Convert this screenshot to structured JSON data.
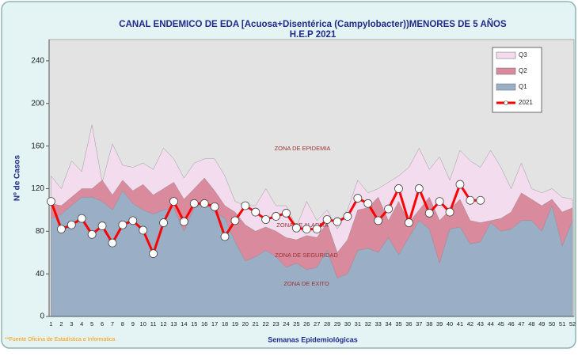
{
  "chart_data": {
    "type": "area",
    "title": "CANAL ENDEMICO DE EDA [Acuosa+Disentérica (Campylobacter))MENORES DE 5 AÑOS",
    "subtitle": "H.E.P 2021",
    "x_label": "Semanas Epidemiológicas",
    "y_label": "Nº de Casos",
    "source": "**Fuente Oficina de Estadística e Informatica",
    "annotations": [
      "ZONA DE EPIDEMIA",
      "ZONA DE ALARMA",
      "ZONA DE SEGURIDAD",
      "ZONA DE EXITO"
    ],
    "categories": [
      1,
      2,
      3,
      4,
      5,
      6,
      7,
      8,
      9,
      10,
      11,
      12,
      13,
      14,
      15,
      16,
      17,
      18,
      19,
      20,
      21,
      22,
      23,
      24,
      25,
      26,
      27,
      28,
      29,
      30,
      31,
      32,
      33,
      34,
      35,
      36,
      37,
      38,
      39,
      40,
      41,
      42,
      43,
      44,
      45,
      46,
      47,
      48,
      49,
      50,
      51,
      52
    ],
    "ylim": [
      0,
      260
    ],
    "yticks": [
      0,
      40,
      80,
      120,
      160,
      200,
      240
    ],
    "series": [
      {
        "name": "Q3",
        "color": "#f2dcee",
        "values": [
          132,
          120,
          146,
          136,
          180,
          126,
          162,
          142,
          140,
          144,
          138,
          158,
          148,
          130,
          144,
          148,
          148,
          132,
          108,
          104,
          104,
          120,
          104,
          104,
          84,
          108,
          90,
          100,
          82,
          100,
          128,
          116,
          120,
          126,
          132,
          140,
          158,
          138,
          150,
          128,
          156,
          146,
          140,
          156,
          140,
          120,
          144,
          120,
          116,
          120,
          112,
          110
        ]
      },
      {
        "name": "Q2",
        "color": "#d98a9c",
        "values": [
          106,
          104,
          112,
          120,
          120,
          128,
          114,
          128,
          118,
          124,
          114,
          120,
          126,
          110,
          120,
          130,
          118,
          104,
          98,
          86,
          80,
          84,
          80,
          74,
          72,
          76,
          74,
          88,
          60,
          72,
          100,
          102,
          112,
          90,
          108,
          88,
          100,
          112,
          90,
          100,
          110,
          90,
          88,
          90,
          92,
          98,
          116,
          110,
          104,
          110,
          98,
          102
        ]
      },
      {
        "name": "Q1",
        "color": "#9aafc6",
        "values": [
          92,
          96,
          104,
          112,
          112,
          108,
          100,
          118,
          106,
          100,
          96,
          100,
          102,
          80,
          102,
          106,
          98,
          92,
          70,
          52,
          56,
          62,
          56,
          46,
          50,
          44,
          46,
          62,
          36,
          40,
          62,
          64,
          60,
          74,
          58,
          74,
          90,
          82,
          50,
          82,
          84,
          68,
          70,
          88,
          80,
          82,
          90,
          90,
          80,
          104,
          66,
          90
        ]
      },
      {
        "name": "2021",
        "color": "#ff0000",
        "line": true,
        "values": [
          108,
          82,
          86,
          92,
          77,
          85,
          69,
          86,
          90,
          81,
          59,
          88,
          108,
          89,
          106,
          106,
          103,
          75,
          90,
          104,
          98,
          91,
          94,
          97,
          83,
          82,
          82,
          91,
          89,
          94,
          111,
          106,
          90,
          101,
          120,
          88,
          120,
          97,
          108,
          98,
          124,
          109,
          109,
          null,
          null,
          null,
          null,
          null,
          null,
          null,
          null,
          null
        ]
      }
    ]
  }
}
